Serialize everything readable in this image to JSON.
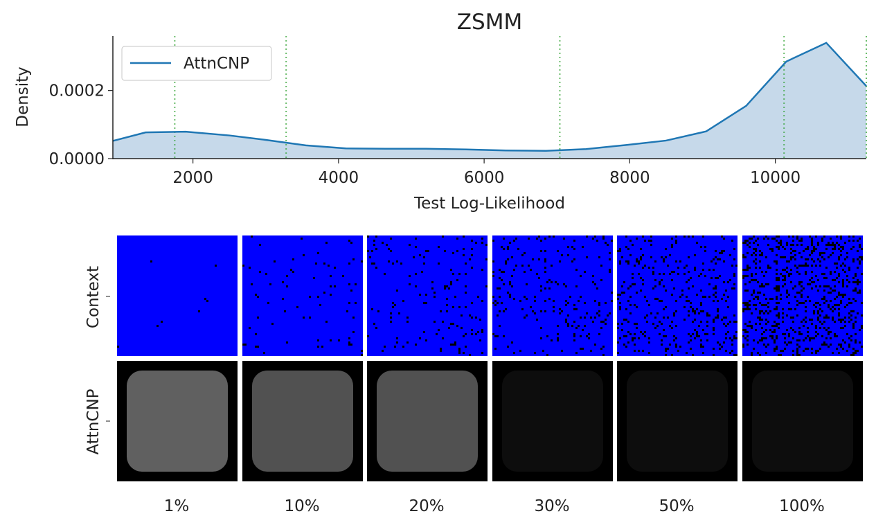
{
  "chart_data": [
    {
      "type": "area",
      "title": "ZSMM",
      "xlabel": "Test Log-Likelihood",
      "ylabel": "Density",
      "xlim": [
        900,
        11250
      ],
      "ylim": [
        0,
        0.00036
      ],
      "xticks": [
        2000,
        4000,
        6000,
        8000,
        10000
      ],
      "xtick_labels": [
        "2000",
        "4000",
        "6000",
        "8000",
        "10000"
      ],
      "yticks": [
        0,
        0.0002
      ],
      "ytick_labels": [
        "0.0000",
        "0.0002"
      ],
      "legend_position": "top-left",
      "series": [
        {
          "name": "AttnCNP",
          "x": [
            900,
            1350,
            1900,
            2500,
            3000,
            3550,
            4100,
            4650,
            5200,
            5750,
            6300,
            6850,
            7400,
            7950,
            8500,
            9050,
            9600,
            10150,
            10700,
            11250
          ],
          "y": [
            5.2e-05,
            7.7e-05,
            7.9e-05,
            6.8e-05,
            5.5e-05,
            3.9e-05,
            3e-05,
            2.9e-05,
            2.9e-05,
            2.7e-05,
            2.4e-05,
            2.3e-05,
            2.8e-05,
            4e-05,
            5.3e-05,
            8e-05,
            0.000155,
            0.000285,
            0.00034,
            0.000213
          ]
        }
      ],
      "vlines_x": [
        1750,
        3280,
        7040,
        10120,
        11250
      ],
      "grid": false,
      "colors": {
        "line": "#1f77b4",
        "fill": "#c6d9ea",
        "vline": "#2ca02c"
      }
    },
    {
      "type": "image-grid",
      "row_labels": [
        "Context",
        "AttnCNP"
      ],
      "column_labels": [
        "1%",
        "10%",
        "20%",
        "30%",
        "50%",
        "100%"
      ],
      "colors": {
        "context_background": "#0000ff",
        "prediction_background": "#000000"
      }
    }
  ]
}
